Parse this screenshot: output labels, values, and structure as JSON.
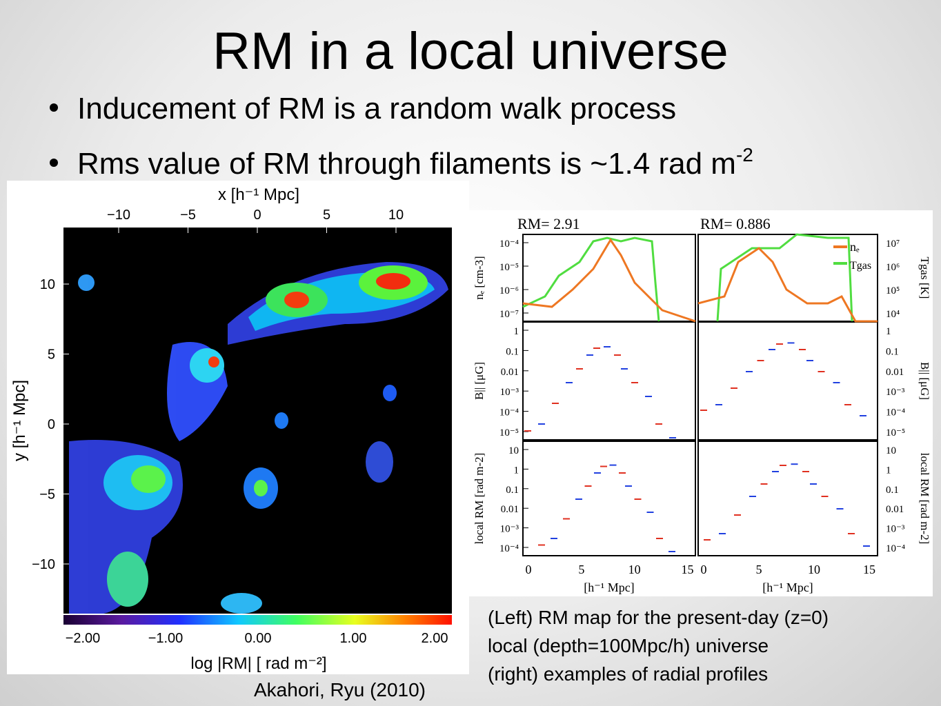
{
  "slide": {
    "title": "RM in a local universe",
    "bullets": [
      {
        "text": "Inducement of RM is a random walk process"
      },
      {
        "text": "Rms value of RM through filaments is ~1.4 rad m",
        "superscript": "-2"
      }
    ]
  },
  "left_figure": {
    "x_label": "x [h⁻¹ Mpc]",
    "y_label": "y [h⁻¹ Mpc]",
    "x_ticks": [
      "−10",
      "−5",
      "0",
      "5",
      "10"
    ],
    "y_ticks": [
      "10",
      "5",
      "0",
      "−5",
      "−10"
    ],
    "colorbar_ticks": [
      "−2.00",
      "−1.00",
      "0.00",
      "1.00",
      "2.00"
    ],
    "colorbar_label": "log |RM| [ rad m⁻²]"
  },
  "right_figure": {
    "panel_titles": [
      "RM= 2.91",
      "RM= 0.886"
    ],
    "rows": [
      {
        "left_label": "nₑ [cm-3]",
        "right_label": "Tgas [K]",
        "left_ticks": [
          "10⁻⁴",
          "10⁻⁵",
          "10⁻⁶",
          "10⁻⁷"
        ],
        "right_ticks": [
          "10⁷",
          "10⁶",
          "10⁵",
          "10⁴"
        ]
      },
      {
        "left_label": "B|| [μG]",
        "right_label": "B|| [μG]",
        "left_ticks": [
          "1",
          "0.1",
          "0.01",
          "10⁻³",
          "10⁻⁴",
          "10⁻⁵"
        ],
        "right_ticks": [
          "1",
          "0.1",
          "0.01",
          "10⁻³",
          "10⁻⁴",
          "10⁻⁵"
        ]
      },
      {
        "left_label": "local RM [rad m-2]",
        "right_label": "local RM [rad m-2]",
        "left_ticks": [
          "10",
          "1",
          "0.1",
          "0.01",
          "10⁻³",
          "10⁻⁴"
        ],
        "right_ticks": [
          "10",
          "1",
          "0.1",
          "0.01",
          "10⁻³",
          "10⁻⁴"
        ]
      }
    ],
    "x_ticks": [
      "0",
      "5",
      "10",
      "15"
    ],
    "x_label": "[h⁻¹ Mpc]",
    "legend": [
      "nₑ",
      "Tgas"
    ]
  },
  "caption": [
    "(Left) RM map for the present-day (z=0)",
    "local (depth=100Mpc/h) universe",
    "(right) examples of radial profiles"
  ],
  "citation": "Akahori, Ryu (2010)"
}
